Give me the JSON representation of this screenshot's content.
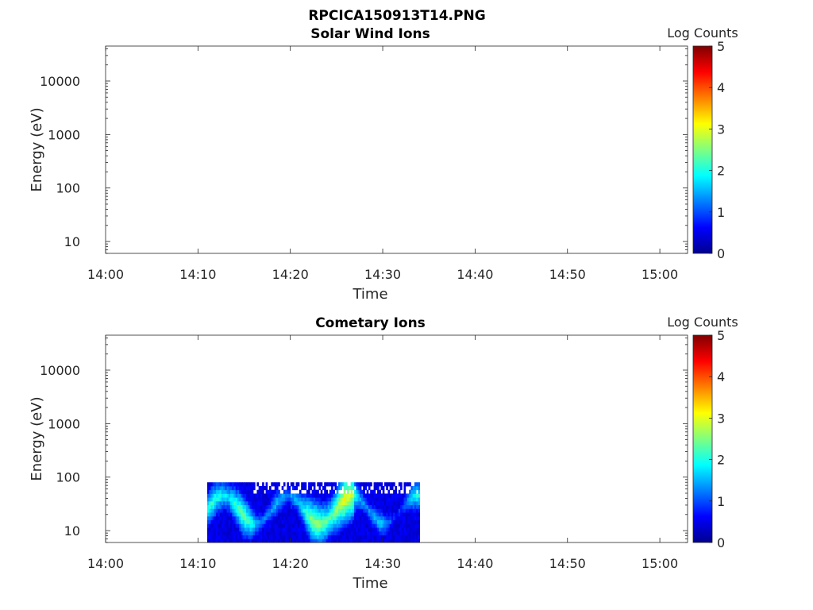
{
  "figure_title": "RPCICA150913T14.PNG",
  "chart_data": [
    {
      "type": "heatmap",
      "title": "Solar Wind Ions",
      "xlabel": "Time",
      "ylabel": "Energy (eV)",
      "x_ticks": [
        "14:00",
        "14:10",
        "14:20",
        "14:30",
        "14:40",
        "14:50",
        "15:00"
      ],
      "x_range_minutes": [
        0,
        63
      ],
      "y_scale": "log",
      "y_ticks": [
        "10",
        "100",
        "1000",
        "10000"
      ],
      "y_range": [
        6,
        45000
      ],
      "colorbar": {
        "label": "Log Counts",
        "range": [
          0,
          5
        ],
        "ticks": [
          "0",
          "1",
          "2",
          "3",
          "4",
          "5"
        ],
        "colormap": "jet"
      },
      "cells": []
    },
    {
      "type": "heatmap",
      "title": "Cometary Ions",
      "xlabel": "Time",
      "ylabel": "Energy (eV)",
      "x_ticks": [
        "14:00",
        "14:10",
        "14:20",
        "14:30",
        "14:40",
        "14:50",
        "15:00"
      ],
      "x_range_minutes": [
        0,
        63
      ],
      "y_scale": "log",
      "y_ticks": [
        "10",
        "100",
        "1000",
        "10000"
      ],
      "y_range": [
        6,
        45000
      ],
      "colorbar": {
        "label": "Log Counts",
        "range": [
          0,
          5
        ],
        "ticks": [
          "0",
          "1",
          "2",
          "3",
          "4",
          "5"
        ],
        "colormap": "jet"
      },
      "data_extent": {
        "time_start": "14:11",
        "time_end": "14:34",
        "energy_min_eV": 6,
        "energy_max_eV": 80
      },
      "cells": []
    }
  ]
}
